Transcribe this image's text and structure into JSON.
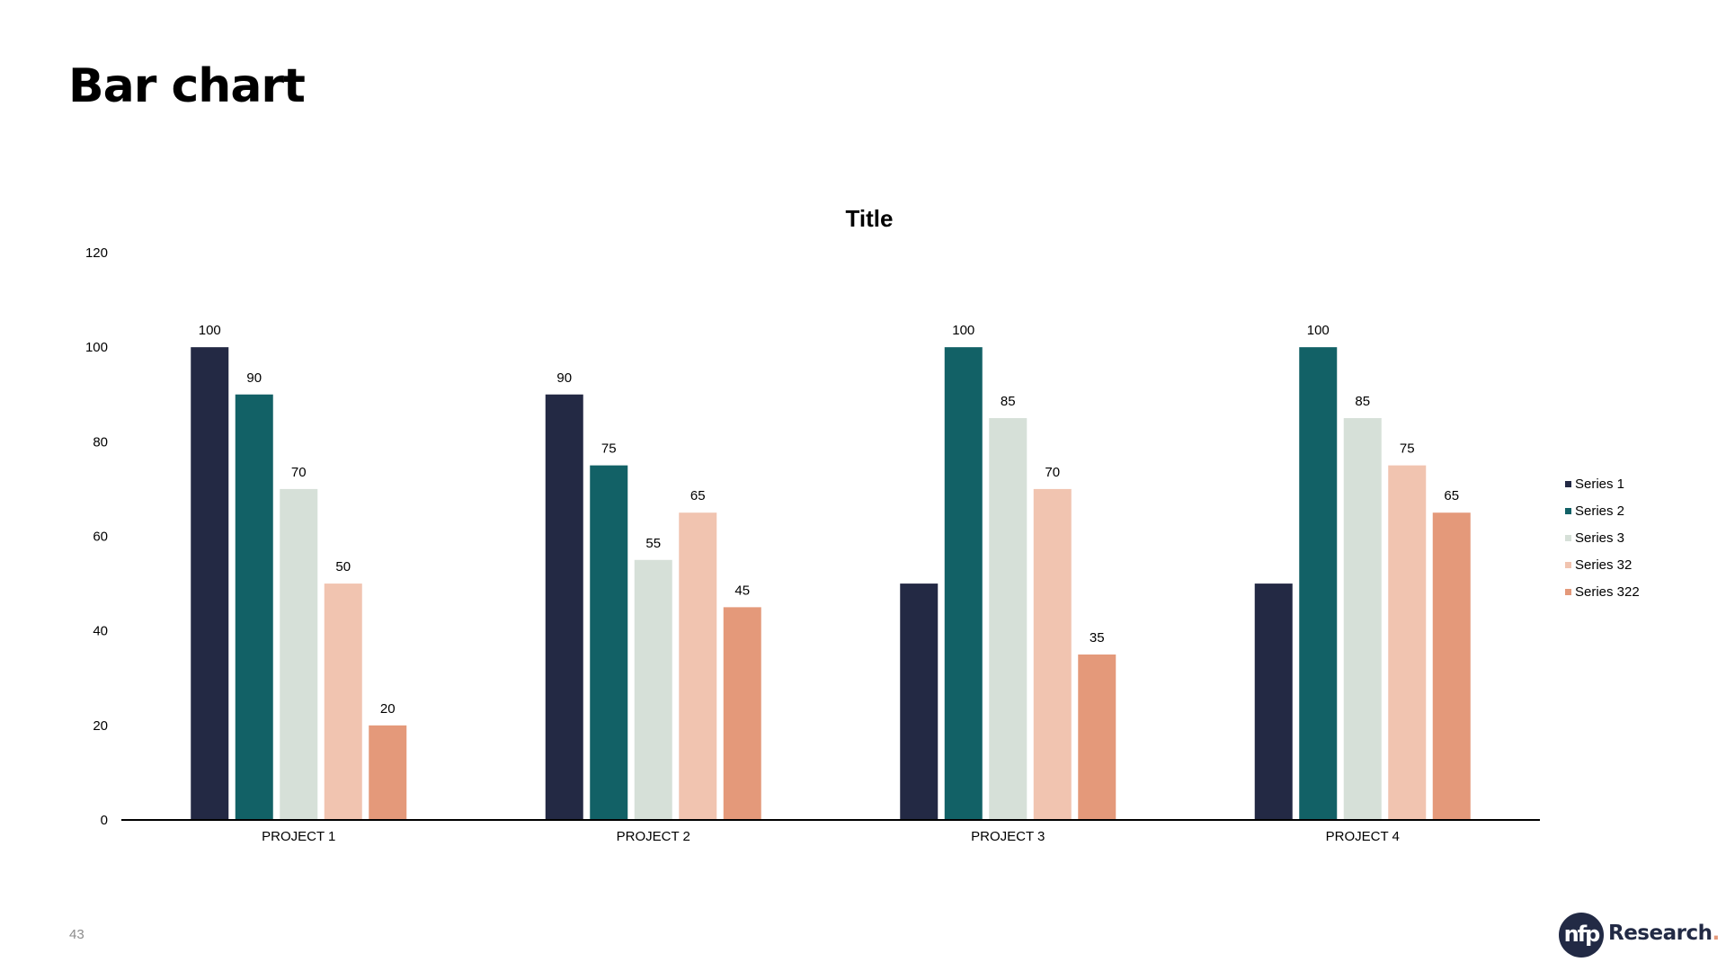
{
  "slide": {
    "title": "Bar chart",
    "page_number": "43"
  },
  "logo": {
    "mark": "nfp",
    "word": "Research",
    "dot": "."
  },
  "colors": {
    "series_1": "#232944",
    "series_2": "#126166",
    "series_3": "#d6e0d8",
    "series_32": "#f1c4b0",
    "series_322": "#e4997a",
    "axis": "#000000"
  },
  "chart_data": {
    "type": "bar",
    "title": "Title",
    "xlabel": "",
    "ylabel": "",
    "categories": [
      "PROJECT 1",
      "PROJECT 2",
      "PROJECT 3",
      "PROJECT 4"
    ],
    "ylim": [
      0,
      120
    ],
    "yticks": [
      0,
      20,
      40,
      60,
      80,
      100,
      120
    ],
    "grid": false,
    "legend_position": "right",
    "series": [
      {
        "name": "Series 1",
        "values": [
          100,
          90,
          50,
          50
        ],
        "labels_shown": [
          true,
          true,
          false,
          false
        ]
      },
      {
        "name": "Series 2",
        "values": [
          90,
          75,
          100,
          100
        ],
        "labels_shown": [
          true,
          true,
          true,
          true
        ]
      },
      {
        "name": "Series 3",
        "values": [
          70,
          55,
          85,
          85
        ],
        "labels_shown": [
          true,
          true,
          true,
          true
        ]
      },
      {
        "name": "Series 32",
        "values": [
          50,
          65,
          70,
          75
        ],
        "labels_shown": [
          true,
          true,
          true,
          true
        ]
      },
      {
        "name": "Series 322",
        "values": [
          20,
          45,
          35,
          65
        ],
        "labels_shown": [
          true,
          true,
          true,
          true
        ]
      }
    ]
  }
}
